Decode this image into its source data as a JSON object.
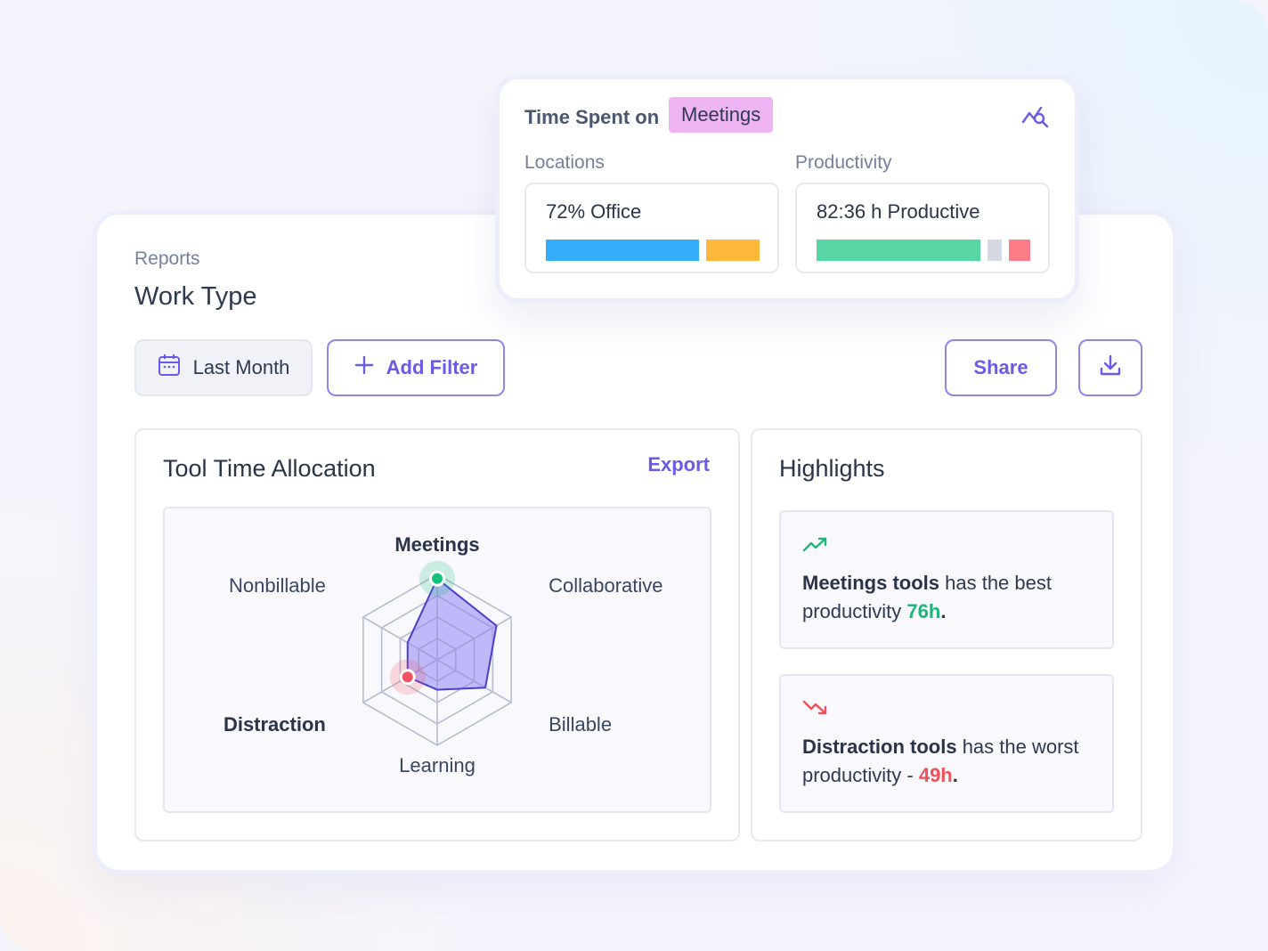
{
  "popover": {
    "label": "Time Spent on",
    "tag": "Meetings",
    "locations": {
      "heading": "Locations",
      "value": "72% Office",
      "segments": [
        {
          "name": "Office",
          "fraction": 0.72,
          "color": "#35adfb"
        },
        {
          "name": "Other",
          "fraction": 0.28,
          "color": "#fdb73a"
        }
      ]
    },
    "productivity": {
      "heading": "Productivity",
      "value": "82:36 h Productive",
      "segments": [
        {
          "name": "Productive",
          "color": "#55d6a2"
        },
        {
          "name": "Neutral",
          "color": "#d5d8e3"
        },
        {
          "name": "Unproductive",
          "color": "#fc7d87"
        }
      ]
    },
    "icon": "chart-search-icon"
  },
  "header": {
    "breadcrumb": "Reports",
    "title": "Work Type"
  },
  "toolbar": {
    "date_label": "Last Month",
    "date_icon": "calendar-icon",
    "filter_label": "Add Filter",
    "filter_icon": "plus-icon",
    "share_label": "Share",
    "download_icon": "download-icon"
  },
  "tools_panel": {
    "title": "Tool Time Allocation",
    "export_label": "Export"
  },
  "chart_data": {
    "type": "radar",
    "axes": [
      "Meetings",
      "Collaborative",
      "Billable",
      "Learning",
      "Distraction",
      "Nonbillable"
    ],
    "bold_axes": [
      "Meetings",
      "Distraction"
    ],
    "rings": 4,
    "values": [
      0.95,
      0.8,
      0.65,
      0.35,
      0.4,
      0.4
    ],
    "range": [
      0,
      1
    ],
    "highlight": {
      "best": "Meetings",
      "worst": "Distraction"
    },
    "colors": {
      "fill": "#8f85f2",
      "stroke": "#4a3fd0",
      "best": "#18c07d",
      "worst": "#f3525e"
    }
  },
  "highlights": {
    "title": "Highlights",
    "items": [
      {
        "icon": "trend-up-icon",
        "strong": "Meetings tools",
        "text": " has the best productivity ",
        "value": "76h",
        "suffix": "."
      },
      {
        "icon": "trend-down-icon",
        "strong": "Distraction tools",
        "text": " has the worst productivity - ",
        "value": "49h",
        "suffix": "."
      }
    ]
  },
  "colors": {
    "accent": "#6a5ae8",
    "good": "#1fb57a",
    "bad": "#f0505a",
    "tag": "#eeb4f4"
  }
}
